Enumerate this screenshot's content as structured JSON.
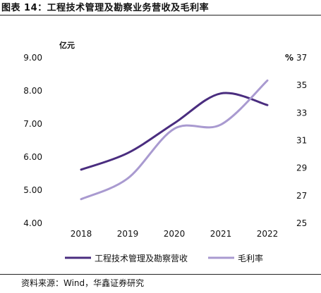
{
  "figure_title": "图表 14：工程技术管理及勘察业务营收及毛利率",
  "source_note": "资料来源：Wind，华鑫证券研究",
  "chart_data": {
    "type": "line",
    "categories": [
      "2018",
      "2019",
      "2020",
      "2021",
      "2022"
    ],
    "left_axis": {
      "unit": "亿元",
      "range": [
        4,
        9
      ],
      "ticks": [
        "4.00",
        "5.00",
        "6.00",
        "7.00",
        "8.00",
        "9.00"
      ],
      "tick_values": [
        4,
        5,
        6,
        7,
        8,
        9
      ]
    },
    "right_axis": {
      "unit": "%",
      "range": [
        25,
        37
      ],
      "ticks": [
        "25",
        "27",
        "29",
        "31",
        "33",
        "35",
        "37"
      ],
      "tick_values": [
        25,
        27,
        29,
        31,
        33,
        35,
        37
      ]
    },
    "series": [
      {
        "name": "工程技术管理及勘察营收",
        "axis": "left",
        "color": "#4a2d7f",
        "values": [
          5.6,
          6.1,
          7.0,
          7.9,
          7.55
        ]
      },
      {
        "name": "毛利率",
        "axis": "right",
        "color": "#a99ad0",
        "values": [
          26.7,
          28.2,
          31.8,
          32.1,
          35.3
        ]
      }
    ],
    "legend_position": "bottom",
    "grid": false
  }
}
